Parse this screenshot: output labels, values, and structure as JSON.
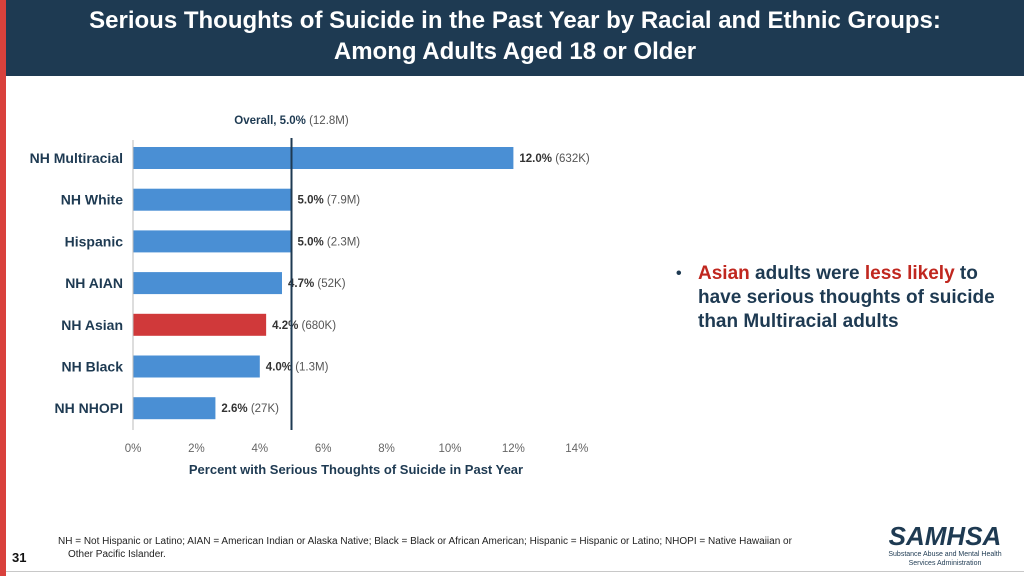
{
  "header": {
    "title_line1": "Serious Thoughts of Suicide in the Past Year by Racial and Ethnic Groups:",
    "title_line2": "Among Adults Aged 18 or Older"
  },
  "chart_data": {
    "type": "bar",
    "orientation": "horizontal",
    "categories": [
      "NH Multiracial",
      "NH White",
      "Hispanic",
      "NH AIAN",
      "NH Asian",
      "NH Black",
      "NH NHOPI"
    ],
    "values": [
      12.0,
      5.0,
      5.0,
      4.7,
      4.2,
      4.0,
      2.6
    ],
    "value_labels": [
      "12.0%",
      "5.0%",
      "5.0%",
      "4.7%",
      "4.2%",
      "4.0%",
      "2.6%"
    ],
    "counts": [
      "(632K)",
      "(7.9M)",
      "(2.3M)",
      "(52K)",
      "(680K)",
      "(1.3M)",
      "(27K)"
    ],
    "highlight": "NH Asian",
    "bar_color": "#4a8fd4",
    "highlight_color": "#d0393a",
    "reference_line": {
      "value": 5.0,
      "label": "Overall, 5.0%",
      "count": "(12.8M)"
    },
    "xlim": [
      0,
      14
    ],
    "xticks": [
      "0%",
      "2%",
      "4%",
      "6%",
      "8%",
      "10%",
      "12%",
      "14%"
    ],
    "xlabel": "Percent with Serious Thoughts of Suicide in Past Year",
    "ylabel": ""
  },
  "bullet": {
    "part1": "Asian",
    "part2": " adults were ",
    "part3": "less likely",
    "part4": " to have serious thoughts of suicide than Multiracial adults"
  },
  "footnote": {
    "line1": "NH = Not Hispanic or Latino; AIAN = American Indian or Alaska Native; Black = Black or African American; Hispanic = Hispanic or Latino; NHOPI = Native Hawaiian or",
    "line2": "Other Pacific Islander."
  },
  "page_number": "31",
  "logo": {
    "name": "SAMHSA",
    "subtitle_line1": "Substance Abuse and Mental Health",
    "subtitle_line2": "Services Administration"
  },
  "colors": {
    "header_bg": "#1e3a52",
    "accent_red": "#c0271f",
    "left_bar": "#d9413c"
  }
}
